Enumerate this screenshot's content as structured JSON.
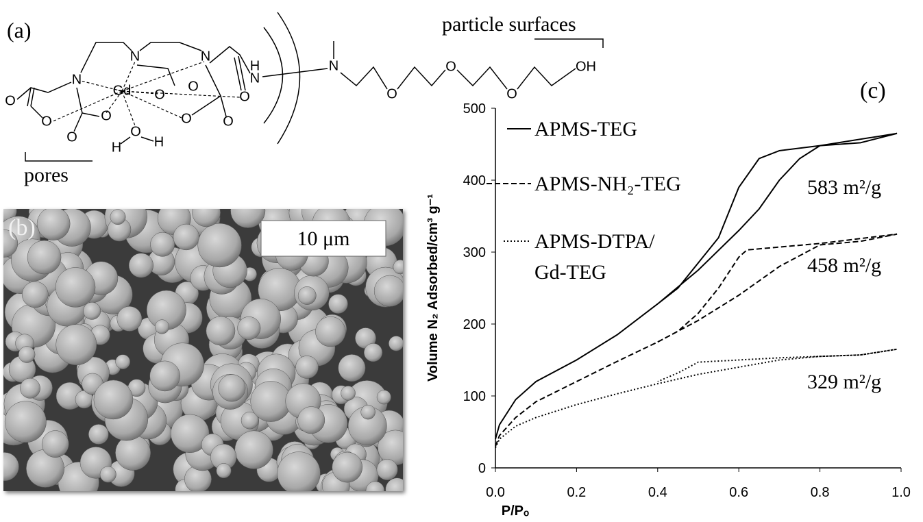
{
  "panel_a": {
    "label": "(a)",
    "surface_label": "particle surfaces",
    "pore_label": "pores",
    "atoms": [
      "N",
      "N",
      "H",
      "N",
      "N",
      "Gd",
      "O",
      "O",
      "O",
      "O",
      "O",
      "O",
      "O",
      "O",
      "H",
      "H",
      "O",
      "O",
      "N",
      "O",
      "O",
      "O",
      "OH"
    ]
  },
  "panel_b": {
    "label": "(b)",
    "scale_bar": "10 μm"
  },
  "chart_data": {
    "type": "line",
    "panel_label": "(c)",
    "x_label": "P/Pₒ",
    "y_label": "Volume N₂ Adsorbed/cm³ g⁻¹",
    "xlim": [
      0,
      1
    ],
    "ylim": [
      0,
      500
    ],
    "xticks": [
      {
        "value": 0,
        "label": "0.0"
      },
      0.2,
      0.4,
      0.6,
      0.8,
      {
        "value": 1,
        "label": "1.0"
      }
    ],
    "yticks": [
      0,
      100,
      200,
      300,
      400,
      500
    ],
    "grid": false,
    "legend": "upper left",
    "series": [
      {
        "name": "APMS-TEG",
        "color": "#000000",
        "dash": "solid",
        "x": [
          0,
          0.01,
          0.05,
          0.1,
          0.2,
          0.3,
          0.4,
          0.5,
          0.6,
          0.65,
          0.7,
          0.75,
          0.8,
          0.9,
          0.99,
          0.8,
          0.7,
          0.65,
          0.6,
          0.55,
          0.5,
          0.45,
          0.4
        ],
        "values": [
          40,
          60,
          95,
          120,
          150,
          185,
          228,
          275,
          330,
          360,
          400,
          430,
          448,
          452,
          465,
          448,
          441,
          430,
          390,
          320,
          285,
          250,
          228
        ]
      },
      {
        "name": "APMS-NH₂-TEG",
        "color": "#000000",
        "dash": "dashed",
        "x": [
          0,
          0.01,
          0.05,
          0.1,
          0.2,
          0.3,
          0.4,
          0.5,
          0.6,
          0.7,
          0.8,
          0.9,
          0.99,
          0.8,
          0.7,
          0.62,
          0.6,
          0.55,
          0.5,
          0.45,
          0.4
        ],
        "values": [
          30,
          45,
          70,
          92,
          120,
          148,
          175,
          205,
          240,
          280,
          310,
          315,
          325,
          312,
          307,
          303,
          293,
          250,
          215,
          190,
          175
        ]
      },
      {
        "name": "APMS-DTPA/Gd-TEG",
        "color": "#000000",
        "dash": "dotted",
        "x": [
          0,
          0.01,
          0.05,
          0.1,
          0.2,
          0.3,
          0.4,
          0.5,
          0.6,
          0.7,
          0.8,
          0.9,
          0.99,
          0.9,
          0.8,
          0.7,
          0.6,
          0.5,
          0.45,
          0.4
        ],
        "values": [
          28,
          40,
          58,
          70,
          88,
          103,
          117,
          130,
          140,
          150,
          155,
          157,
          165,
          157,
          155,
          153,
          150,
          147,
          132,
          120
        ]
      }
    ],
    "annotations": [
      "583 m²/g",
      "458 m²/g",
      "329 m²/g"
    ]
  }
}
